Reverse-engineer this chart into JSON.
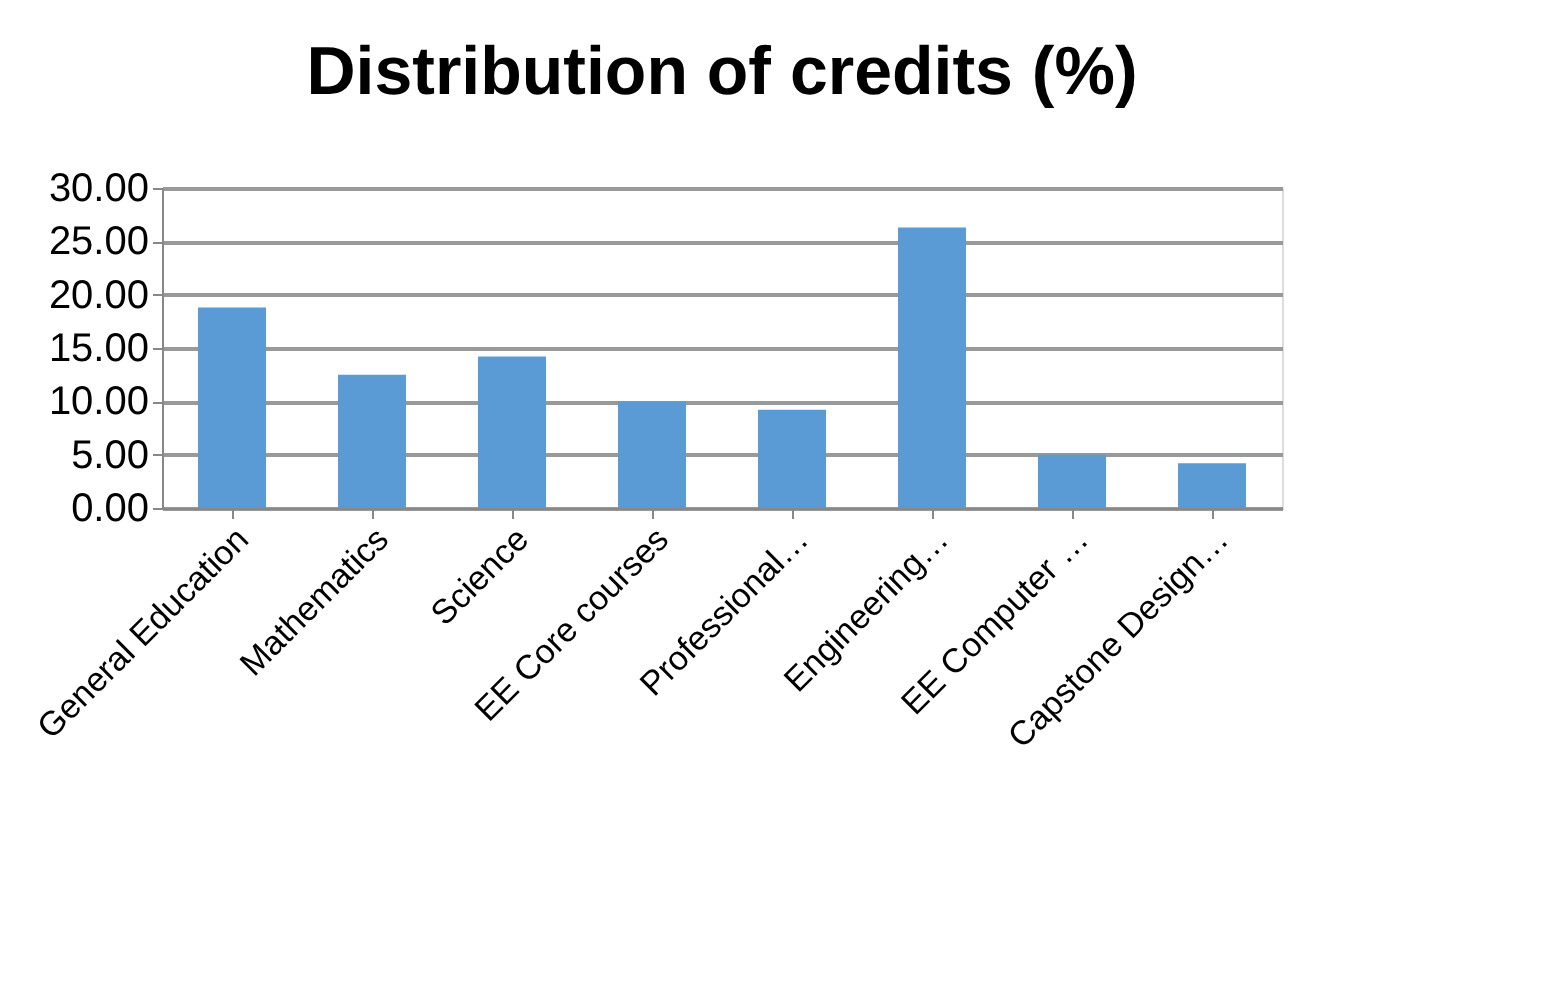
{
  "chart_data": {
    "type": "bar",
    "title": "Distribution of credits (%)",
    "categories": [
      "General Education",
      "Mathematics",
      "Science",
      "EE Core courses",
      "Professional…",
      "Engineering…",
      "EE Computer …",
      "Capstone Design…"
    ],
    "series": [
      {
        "color": "#5b9bd5",
        "values": [
          18.8,
          12.5,
          14.2,
          10.0,
          9.2,
          26.3,
          5.0,
          4.2
        ]
      }
    ],
    "ylim": [
      0,
      30
    ],
    "yticks": [
      {
        "value": 0,
        "label": "0.00"
      },
      {
        "value": 5,
        "label": "5.00"
      },
      {
        "value": 10,
        "label": "10.00"
      },
      {
        "value": 15,
        "label": "15.00"
      },
      {
        "value": 20,
        "label": "20.00"
      },
      {
        "value": 25,
        "label": "25.00"
      },
      {
        "value": 30,
        "label": "30.00"
      }
    ],
    "grid": "y",
    "legend": false
  }
}
